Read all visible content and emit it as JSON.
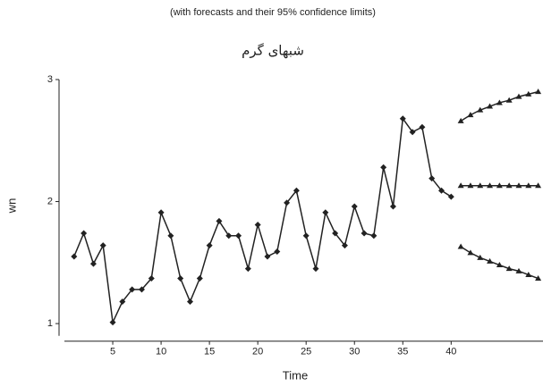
{
  "chart_data": {
    "type": "line",
    "title": "(with forecasts and their 95% confidence limits)",
    "subtitle": "شبهای گرم",
    "x_label": "Time",
    "y_label": "wn",
    "x": [
      1,
      2,
      3,
      4,
      5,
      6,
      7,
      8,
      9,
      10,
      11,
      12,
      13,
      14,
      15,
      16,
      17,
      18,
      19,
      20,
      21,
      22,
      23,
      24,
      25,
      26,
      27,
      28,
      29,
      30,
      31,
      32,
      33,
      34,
      35,
      36,
      37,
      38,
      39,
      40,
      41,
      42,
      43,
      44,
      45,
      46,
      47,
      48,
      49
    ],
    "series": [
      {
        "color": "#222222",
        "marker": "diamond",
        "values": [
          1.55,
          1.74,
          1.49,
          1.64,
          1.01,
          1.18,
          1.28,
          1.28,
          1.37,
          1.91,
          1.72,
          1.37,
          1.18,
          1.37,
          1.64,
          1.84,
          1.72,
          1.72,
          1.45,
          1.81,
          1.55,
          1.59,
          1.99,
          2.09,
          1.72,
          1.45,
          1.91,
          1.74,
          1.64,
          1.96,
          1.74,
          1.72,
          2.28,
          1.96,
          2.68,
          2.57,
          2.61,
          2.19,
          2.09,
          2.04,
          null,
          null,
          null,
          null,
          null,
          null,
          null,
          null,
          null
        ]
      },
      {
        "color": "#222222",
        "marker": "triangle",
        "values": [
          null,
          null,
          null,
          null,
          null,
          null,
          null,
          null,
          null,
          null,
          null,
          null,
          null,
          null,
          null,
          null,
          null,
          null,
          null,
          null,
          null,
          null,
          null,
          null,
          null,
          null,
          null,
          null,
          null,
          null,
          null,
          null,
          null,
          null,
          null,
          null,
          null,
          null,
          null,
          null,
          2.13,
          2.13,
          2.13,
          2.13,
          2.13,
          2.13,
          2.13,
          2.13,
          2.13
        ]
      },
      {
        "color": "#222222",
        "marker": "triangle",
        "values": [
          null,
          null,
          null,
          null,
          null,
          null,
          null,
          null,
          null,
          null,
          null,
          null,
          null,
          null,
          null,
          null,
          null,
          null,
          null,
          null,
          null,
          null,
          null,
          null,
          null,
          null,
          null,
          null,
          null,
          null,
          null,
          null,
          null,
          null,
          null,
          null,
          null,
          null,
          null,
          null,
          2.66,
          2.71,
          2.75,
          2.78,
          2.81,
          2.83,
          2.86,
          2.88,
          2.9
        ]
      },
      {
        "color": "#222222",
        "marker": "triangle",
        "values": [
          null,
          null,
          null,
          null,
          null,
          null,
          null,
          null,
          null,
          null,
          null,
          null,
          null,
          null,
          null,
          null,
          null,
          null,
          null,
          null,
          null,
          null,
          null,
          null,
          null,
          null,
          null,
          null,
          null,
          null,
          null,
          null,
          null,
          null,
          null,
          null,
          null,
          null,
          null,
          null,
          1.63,
          1.58,
          1.54,
          1.51,
          1.48,
          1.45,
          1.43,
          1.4,
          1.37
        ]
      }
    ],
    "xlim": [
      0,
      49.5
    ],
    "xticks": [
      5,
      10,
      15,
      20,
      25,
      30,
      35,
      40
    ],
    "ylim": [
      0.9,
      3
    ],
    "yticks": [
      1,
      2,
      3
    ]
  }
}
